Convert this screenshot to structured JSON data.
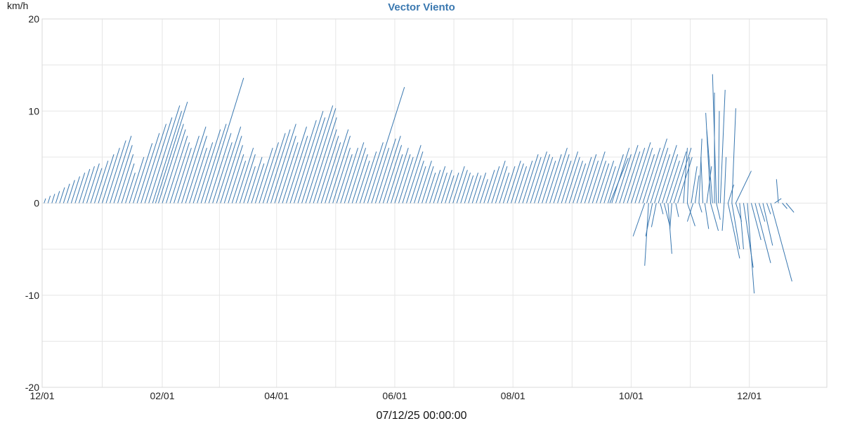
{
  "chart_data": {
    "type": "line",
    "title": "Vector Viento",
    "ylabel": "km/h",
    "xlabel": "07/12/25 00:00:00",
    "ylim": [
      -20,
      20
    ],
    "y_ticks": [
      20,
      10,
      0,
      -10,
      -20
    ],
    "x_ticks": [
      "12/01",
      "02/01",
      "04/01",
      "06/01",
      "08/01",
      "10/01",
      "12/01"
    ],
    "grid": true,
    "color": "#3a78b0",
    "title_color": "#3a78b0",
    "x_tick_days": [
      0,
      62,
      121,
      182,
      243,
      304,
      365
    ],
    "x_domain_days": [
      0,
      405
    ],
    "notes": "Each series element is a wind vector drawn from (day, 0) to (day + dx_days, dy). Values estimated from the figure.",
    "series": [
      {
        "vectors": [
          [
            1,
            0.8,
            0.5
          ],
          [
            3,
            1.2,
            0.8
          ],
          [
            5,
            1.5,
            1.0
          ],
          [
            7,
            2.0,
            1.3
          ],
          [
            9,
            2.6,
            1.7
          ],
          [
            11,
            3.2,
            2.1
          ],
          [
            13,
            3.8,
            2.5
          ],
          [
            15,
            4.4,
            2.9
          ],
          [
            17,
            5.0,
            3.3
          ],
          [
            19,
            5.6,
            3.7
          ],
          [
            21,
            6.0,
            4.0
          ],
          [
            23,
            6.5,
            4.3
          ],
          [
            25,
            5.8,
            3.8
          ],
          [
            27,
            7.0,
            4.6
          ],
          [
            29,
            8.0,
            5.3
          ],
          [
            31,
            9.0,
            6.0
          ],
          [
            33,
            10.2,
            6.8
          ],
          [
            35,
            11.0,
            7.3
          ],
          [
            37,
            9.5,
            6.3
          ],
          [
            39,
            8.0,
            5.3
          ],
          [
            41,
            6.5,
            4.3
          ],
          [
            43,
            5.0,
            3.3
          ],
          [
            45,
            7.5,
            5.0
          ],
          [
            47,
            9.8,
            6.5
          ],
          [
            49,
            11.5,
            7.6
          ],
          [
            51,
            13.0,
            8.6
          ],
          [
            53,
            14.0,
            9.3
          ],
          [
            55,
            16.0,
            10.6
          ],
          [
            57,
            15.0,
            10.0
          ],
          [
            58.5,
            16.5,
            11.0
          ],
          [
            60,
            13.0,
            8.6
          ],
          [
            62,
            12.0,
            8.0
          ],
          [
            64,
            11.0,
            7.3
          ],
          [
            66,
            10.0,
            6.6
          ],
          [
            68,
            9.0,
            6.0
          ],
          [
            70,
            11.0,
            7.3
          ],
          [
            72,
            12.5,
            8.3
          ],
          [
            74,
            11.0,
            7.3
          ],
          [
            76,
            9.0,
            6.0
          ],
          [
            78,
            10.0,
            6.6
          ],
          [
            80,
            12.0,
            8.0
          ],
          [
            82,
            13.0,
            8.6
          ],
          [
            84,
            20.0,
            13.6
          ],
          [
            86,
            11.5,
            7.6
          ],
          [
            88,
            10.0,
            6.6
          ],
          [
            90,
            12.5,
            8.3
          ],
          [
            92,
            11.0,
            7.3
          ],
          [
            94,
            9.5,
            6.3
          ],
          [
            96,
            8.0,
            5.3
          ],
          [
            98,
            7.0,
            4.6
          ],
          [
            100,
            9.0,
            6.0
          ],
          [
            102,
            8.0,
            5.3
          ],
          [
            104,
            6.0,
            4.0
          ],
          [
            106,
            7.5,
            5.0
          ],
          [
            108,
            6.5,
            4.3
          ],
          [
            110,
            9.0,
            6.0
          ],
          [
            112,
            10.0,
            6.6
          ],
          [
            114,
            11.5,
            7.6
          ],
          [
            116,
            12.0,
            8.0
          ],
          [
            118,
            13.0,
            8.6
          ],
          [
            120,
            11.0,
            7.3
          ],
          [
            122,
            10.0,
            6.6
          ],
          [
            124,
            12.5,
            8.3
          ],
          [
            126,
            11.0,
            7.3
          ],
          [
            128,
            13.5,
            9.0
          ],
          [
            130,
            15.0,
            10.0
          ],
          [
            132,
            14.0,
            9.3
          ],
          [
            134,
            16.0,
            10.6
          ],
          [
            136,
            15.5,
            10.3
          ],
          [
            138,
            14.0,
            9.3
          ],
          [
            140,
            12.0,
            8.0
          ],
          [
            142,
            11.0,
            7.3
          ],
          [
            144,
            10.0,
            6.6
          ],
          [
            146,
            12.0,
            8.0
          ],
          [
            148,
            11.0,
            7.3
          ],
          [
            150,
            9.0,
            6.0
          ],
          [
            152,
            8.0,
            5.3
          ],
          [
            154,
            9.0,
            6.0
          ],
          [
            156,
            10.0,
            6.6
          ],
          [
            158,
            9.0,
            6.0
          ],
          [
            160,
            8.0,
            5.3
          ],
          [
            162,
            7.0,
            4.6
          ],
          [
            164,
            8.5,
            5.6
          ],
          [
            166,
            10.0,
            6.6
          ],
          [
            168,
            19.0,
            12.6
          ],
          [
            170,
            9.0,
            6.0
          ],
          [
            172,
            10.5,
            7.0
          ],
          [
            174,
            11.0,
            7.3
          ],
          [
            176,
            9.5,
            6.3
          ],
          [
            178,
            8.0,
            5.3
          ],
          [
            180,
            9.0,
            6.0
          ],
          [
            182,
            8.0,
            5.3
          ],
          [
            184,
            7.5,
            5.0
          ],
          [
            186,
            9.5,
            6.3
          ],
          [
            188,
            8.5,
            5.6
          ],
          [
            190,
            7.0,
            4.6
          ],
          [
            192,
            6.0,
            4.0
          ],
          [
            194,
            7.0,
            4.6
          ],
          [
            196,
            6.0,
            4.0
          ],
          [
            198,
            5.0,
            3.3
          ],
          [
            200,
            5.5,
            3.6
          ],
          [
            202,
            6.0,
            4.0
          ],
          [
            204,
            5.0,
            3.3
          ],
          [
            206,
            5.5,
            3.6
          ],
          [
            208,
            4.5,
            3.0
          ],
          [
            210,
            5.0,
            3.3
          ],
          [
            212,
            6.0,
            4.0
          ],
          [
            214,
            5.5,
            3.6
          ],
          [
            216,
            5.0,
            3.3
          ],
          [
            218,
            4.5,
            3.0
          ],
          [
            220,
            5.0,
            3.3
          ],
          [
            222,
            4.5,
            3.0
          ],
          [
            224,
            5.0,
            3.3
          ],
          [
            226,
            4.0,
            2.6
          ],
          [
            228,
            5.5,
            3.6
          ],
          [
            230,
            6.0,
            4.0
          ],
          [
            232,
            7.0,
            4.6
          ],
          [
            234,
            6.0,
            4.0
          ],
          [
            236,
            5.0,
            3.3
          ],
          [
            238,
            6.0,
            4.0
          ],
          [
            240,
            7.0,
            4.6
          ],
          [
            242,
            6.5,
            4.3
          ],
          [
            244,
            6.0,
            4.0
          ],
          [
            246,
            7.0,
            4.6
          ],
          [
            248,
            8.0,
            5.3
          ],
          [
            250,
            7.5,
            5.0
          ],
          [
            252,
            8.5,
            5.6
          ],
          [
            254,
            8.0,
            5.3
          ],
          [
            256,
            7.5,
            5.0
          ],
          [
            258,
            7.0,
            4.6
          ],
          [
            260,
            8.0,
            5.3
          ],
          [
            262,
            9.0,
            6.0
          ],
          [
            264,
            8.0,
            5.3
          ],
          [
            266,
            7.0,
            4.6
          ],
          [
            268,
            8.5,
            5.6
          ],
          [
            270,
            7.5,
            5.0
          ],
          [
            272,
            7.0,
            4.6
          ],
          [
            274,
            6.5,
            4.3
          ],
          [
            276,
            7.5,
            5.0
          ],
          [
            278,
            8.0,
            5.3
          ],
          [
            280,
            7.0,
            4.6
          ],
          [
            282,
            8.5,
            5.6
          ],
          [
            284,
            7.0,
            4.6
          ],
          [
            286,
            6.5,
            4.3
          ],
          [
            288,
            7.0,
            4.6
          ],
          [
            290,
            6.0,
            4.0
          ],
          [
            292,
            8.0,
            5.3
          ],
          [
            294,
            9.0,
            6.0
          ],
          [
            296,
            8.0,
            5.3
          ],
          [
            298,
            9.5,
            6.3
          ],
          [
            300,
            8.5,
            5.6
          ],
          [
            302,
            9.0,
            6.0
          ],
          [
            304,
            10.0,
            6.6
          ],
          [
            306,
            9.0,
            6.0
          ],
          [
            308,
            8.0,
            5.3
          ],
          [
            310,
            9.0,
            6.0
          ],
          [
            312,
            10.5,
            7.0
          ],
          [
            314,
            9.0,
            6.0
          ],
          [
            316,
            8.0,
            5.3
          ],
          [
            318,
            9.5,
            6.3
          ],
          [
            320,
            8.0,
            5.3
          ],
          [
            322,
            7.0,
            4.6
          ],
          [
            324,
            8.5,
            5.6
          ],
          [
            326,
            9.0,
            6.0
          ],
          [
            328,
            7.5,
            5.0
          ]
        ]
      },
      {
        "vectors": [
          [
            293,
            9.5,
            4.9
          ],
          [
            311,
            -6.0,
            -3.6
          ],
          [
            313,
            -2.0,
            -6.8
          ],
          [
            315,
            -3.5,
            -3.6
          ],
          [
            317,
            -2.5,
            -2.6
          ],
          [
            319,
            1.5,
            -1.2
          ],
          [
            321,
            3.0,
            -2.5
          ],
          [
            323,
            2.0,
            -5.5
          ],
          [
            325,
            -1.0,
            -2.8
          ],
          [
            327,
            1.5,
            -1.5
          ],
          [
            331,
            2.0,
            6.0
          ],
          [
            333,
            1.0,
            5.0
          ],
          [
            335,
            3.0,
            4.0
          ],
          [
            337,
            2.0,
            3.0
          ],
          [
            339,
            1.5,
            7.0
          ],
          [
            341,
            -1.0,
            5.0
          ],
          [
            343,
            2.5,
            4.0
          ],
          [
            345,
            -2.5,
            9.8
          ],
          [
            346,
            -3.0,
            8.0
          ],
          [
            347,
            0.0,
            12.0
          ],
          [
            348,
            -2.0,
            14.0
          ],
          [
            349,
            0.5,
            10.0
          ],
          [
            350,
            2.5,
            12.3
          ],
          [
            352,
            1.0,
            5.0
          ],
          [
            354,
            3.0,
            2.0
          ],
          [
            356,
            2.0,
            10.3
          ],
          [
            358,
            8.0,
            3.5
          ],
          [
            333,
            4.0,
            -2.5
          ],
          [
            336,
            -3.0,
            -2.0
          ],
          [
            339,
            1.5,
            -1.0
          ],
          [
            342,
            2.0,
            -2.8
          ],
          [
            345,
            4.0,
            -3.0
          ],
          [
            348,
            2.0,
            -1.8
          ],
          [
            352,
            -1.0,
            -3.0
          ],
          [
            354,
            6.0,
            -6.0
          ],
          [
            356,
            4.0,
            -5.0
          ],
          [
            358,
            3.0,
            -2.0
          ],
          [
            360,
            2.0,
            -5.0
          ],
          [
            362,
            5.0,
            -7.0
          ],
          [
            364,
            3.5,
            -9.8
          ],
          [
            366,
            5.0,
            -4.0
          ],
          [
            368,
            8.0,
            -6.5
          ],
          [
            370,
            3.0,
            -2.0
          ],
          [
            372,
            5.0,
            -4.6
          ],
          [
            374,
            2.0,
            -1.2
          ],
          [
            376,
            11.0,
            -8.5
          ],
          [
            378,
            3.5,
            0.5
          ],
          [
            380,
            -1.0,
            2.6
          ],
          [
            382,
            2.5,
            -0.6
          ],
          [
            384,
            4.0,
            -1.0
          ]
        ]
      }
    ]
  }
}
